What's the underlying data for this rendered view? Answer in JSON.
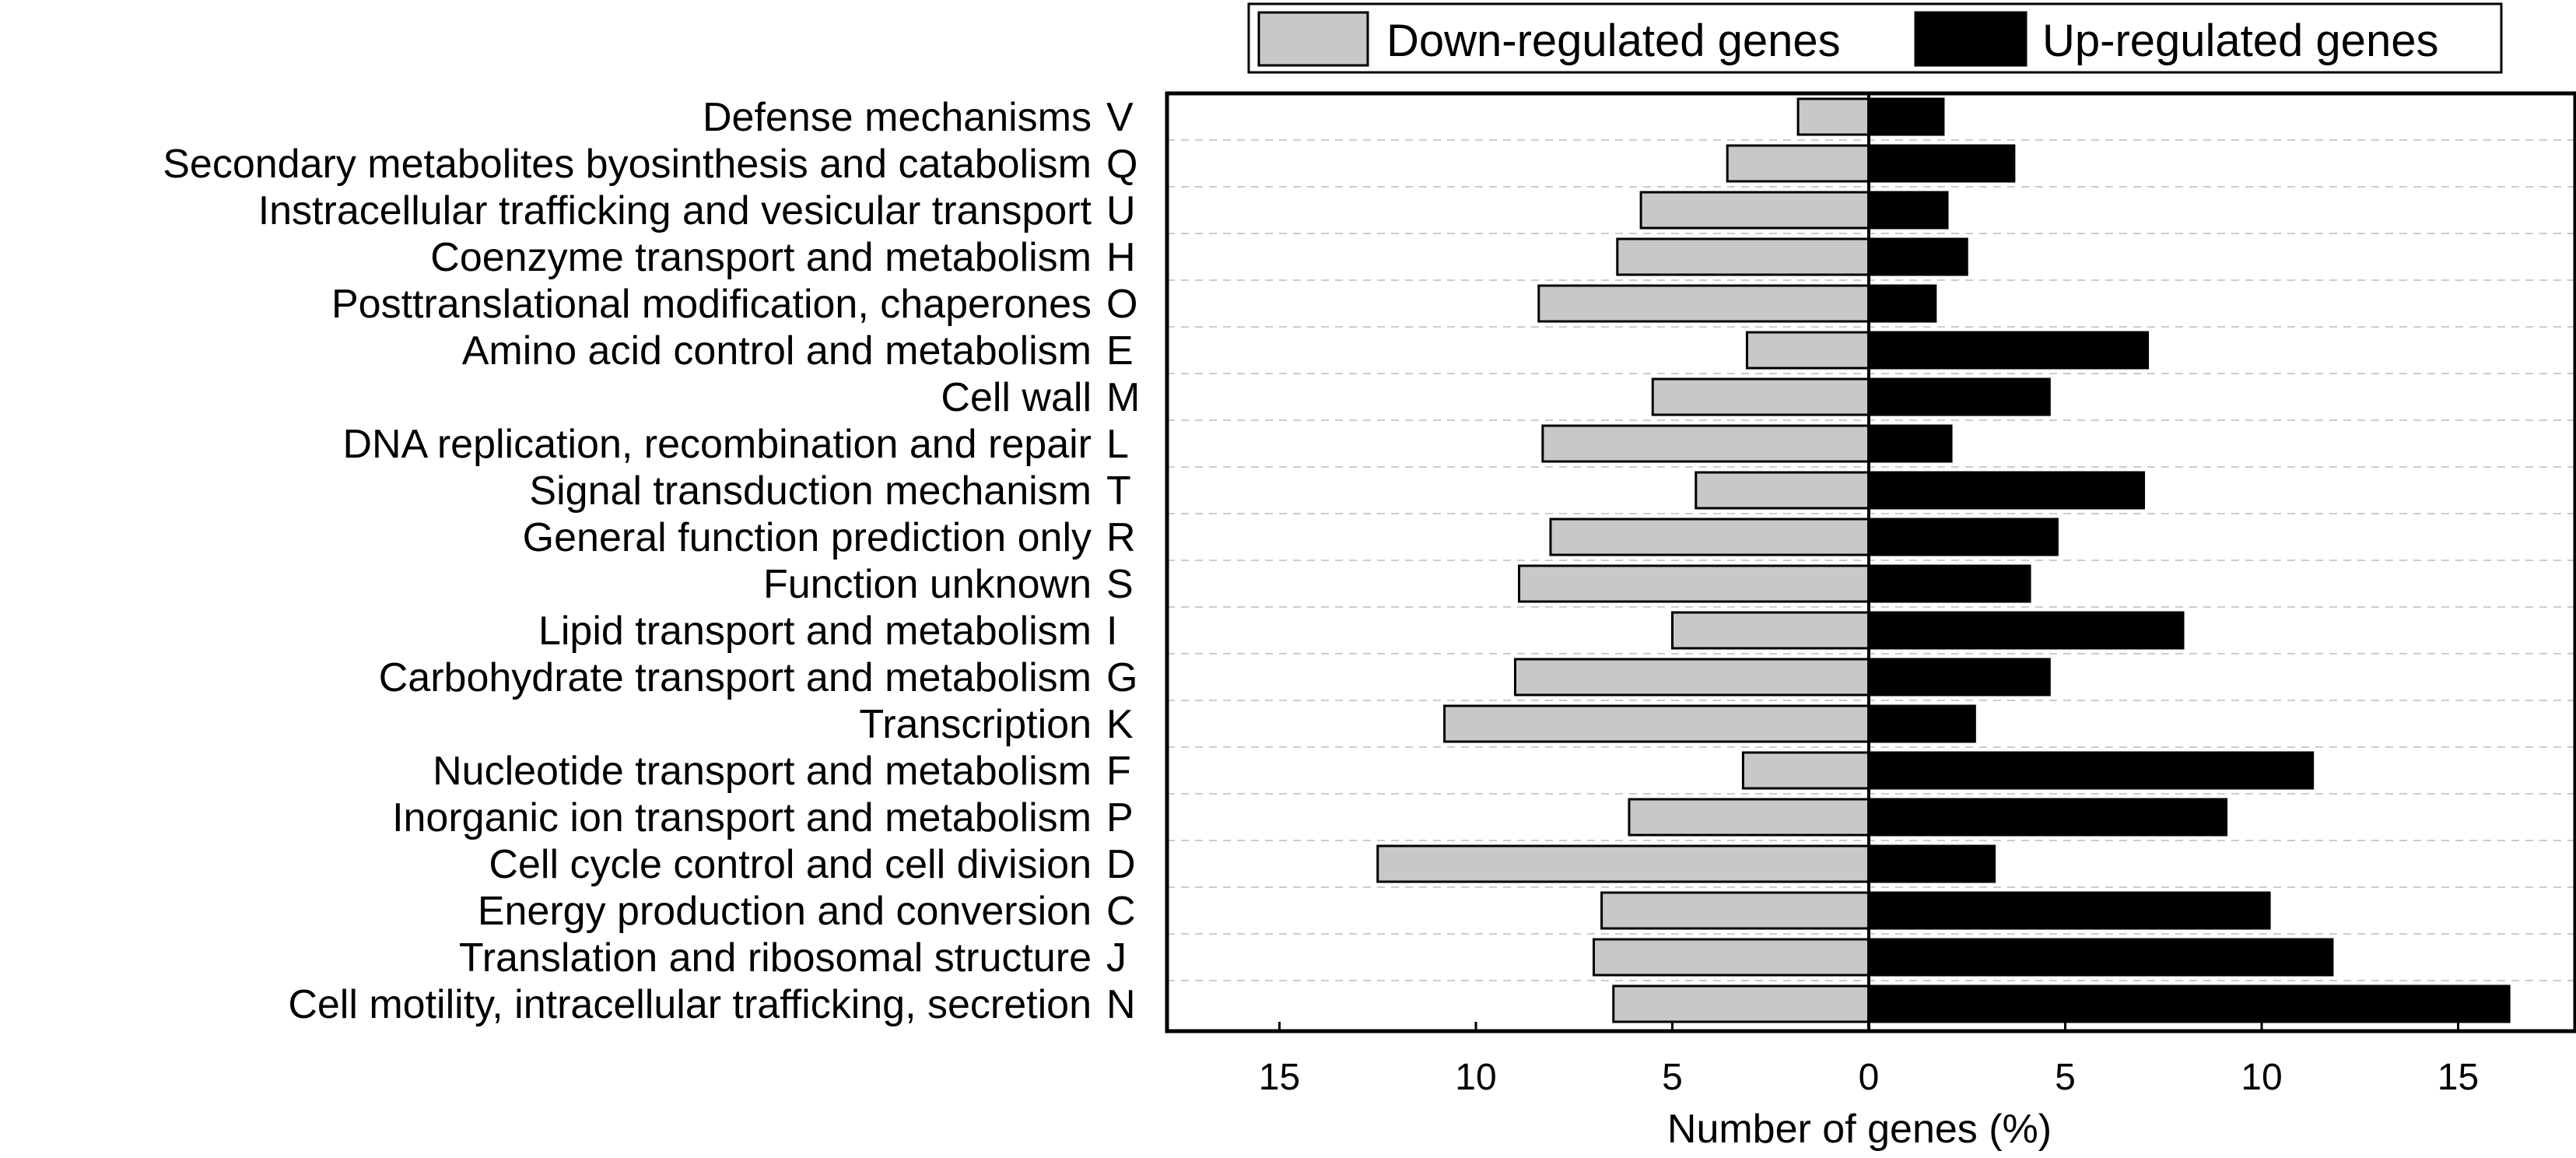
{
  "chart_data": {
    "type": "bar",
    "orientation": "horizontal-diverging",
    "title": "",
    "xlabel": "Number of genes (%)",
    "ylabel": "",
    "xlim": [
      -18,
      18
    ],
    "xticks": [
      -15,
      -10,
      -5,
      0,
      5,
      10,
      15
    ],
    "xtick_labels": [
      "15",
      "10",
      "5",
      "0",
      "5",
      "10",
      "15"
    ],
    "grid": "horizontal dashed",
    "legend_position": "top",
    "colors": {
      "down": "#c8c8c8",
      "up": "#000000",
      "axis": "#000000",
      "grid": "#cccccc"
    },
    "categories": [
      "Defense mechanisms",
      "Secondary metabolites byosinthesis and catabolism",
      "Instracellular trafficking and vesicular transport",
      "Coenzyme transport and metabolism",
      "Posttranslational modification, chaperones",
      "Amino acid control and metabolism",
      "Cell wall",
      "DNA replication, recombination and repair",
      "Signal transduction mechanism",
      "General function prediction only",
      "Function unknown",
      "Lipid transport and metabolism",
      "Carbohydrate transport and metabolism",
      "Transcription",
      "Nucleotide transport and metabolism",
      "Inorganic ion transport and metabolism",
      "Cell cycle control and cell division",
      "Energy production and conversion",
      "Translation and ribosomal structure",
      "Cell motility, intracellular trafficking, secretion"
    ],
    "codes": [
      "V",
      "Q",
      "U",
      "H",
      "O",
      "E",
      "M",
      "L",
      "T",
      "R",
      "S",
      "I",
      "G",
      "K",
      "F",
      "P",
      "D",
      "C",
      "J",
      "N"
    ],
    "series": [
      {
        "name": "Down-regulated genes",
        "values": [
          1.8,
          3.6,
          5.8,
          6.4,
          8.4,
          3.1,
          5.5,
          8.3,
          4.4,
          8.1,
          8.9,
          5.0,
          9.0,
          10.8,
          3.2,
          6.1,
          12.5,
          6.8,
          7.0,
          6.5
        ]
      },
      {
        "name": "Up-regulated genes",
        "values": [
          1.9,
          3.7,
          2.0,
          2.5,
          1.7,
          7.1,
          4.6,
          2.1,
          7.0,
          4.8,
          4.1,
          8.0,
          4.6,
          2.7,
          11.3,
          9.1,
          3.2,
          10.2,
          11.8,
          16.3
        ]
      }
    ]
  }
}
